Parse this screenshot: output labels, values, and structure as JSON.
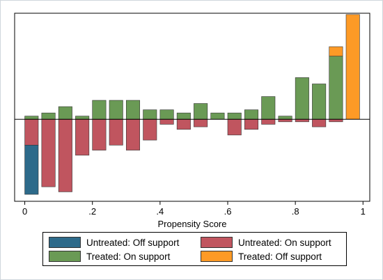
{
  "chart_data": {
    "type": "bar",
    "xlabel": "Propensity Score",
    "ylabel": "",
    "xlim": [
      -0.03,
      1.02
    ],
    "ylim": [
      -1.3,
      1.68
    ],
    "xticks": [
      "0",
      ".2",
      ".4",
      ".6",
      ".8",
      "1"
    ],
    "xtick_values": [
      0,
      0.2,
      0.4,
      0.6,
      0.8,
      1
    ],
    "bin_width": 0.04,
    "colors": {
      "untreated_off": "#2d6a8a",
      "untreated_on": "#c0555f",
      "treated_on": "#6a9a55",
      "treated_off": "#fd9a26",
      "edge": "#333333"
    },
    "series": [
      {
        "name": "Treated: On support",
        "key": "treated_on",
        "side": "up",
        "x": [
          0.02,
          0.07,
          0.12,
          0.17,
          0.22,
          0.27,
          0.32,
          0.37,
          0.42,
          0.47,
          0.52,
          0.57,
          0.62,
          0.67,
          0.72,
          0.77,
          0.82,
          0.87,
          0.92
        ],
        "values": [
          0.05,
          0.1,
          0.2,
          0.05,
          0.3,
          0.3,
          0.3,
          0.15,
          0.15,
          0.1,
          0.25,
          0.1,
          0.1,
          0.15,
          0.36,
          0.05,
          0.66,
          0.56,
          1.0
        ]
      },
      {
        "name": "Treated: Off support",
        "key": "treated_off",
        "side": "up",
        "x": [
          0.92,
          0.97
        ],
        "base": [
          1.0,
          0.0
        ],
        "values": [
          0.15,
          1.66
        ]
      },
      {
        "name": "Untreated: On support",
        "key": "untreated_on",
        "side": "down",
        "x": [
          0.02,
          0.07,
          0.12,
          0.17,
          0.22,
          0.27,
          0.32,
          0.37,
          0.42,
          0.47,
          0.52,
          0.57,
          0.62,
          0.67,
          0.72,
          0.77,
          0.82,
          0.87,
          0.92
        ],
        "values": [
          0.41,
          1.07,
          1.15,
          0.57,
          0.49,
          0.41,
          0.49,
          0.33,
          0.08,
          0.16,
          0.12,
          0.0,
          0.25,
          0.16,
          0.08,
          0.04,
          0.04,
          0.12,
          0.04
        ]
      },
      {
        "name": "Untreated: Off support",
        "key": "untreated_off",
        "side": "down",
        "x": [
          0.02
        ],
        "base": [
          0.41
        ],
        "values": [
          0.78
        ]
      }
    ],
    "legend": {
      "position": "bottom",
      "items": [
        {
          "label": "Untreated: Off support",
          "key": "untreated_off"
        },
        {
          "label": "Untreated: On support",
          "key": "untreated_on"
        },
        {
          "label": "Treated: On support",
          "key": "treated_on"
        },
        {
          "label": "Treated: Off support",
          "key": "treated_off"
        }
      ]
    }
  }
}
